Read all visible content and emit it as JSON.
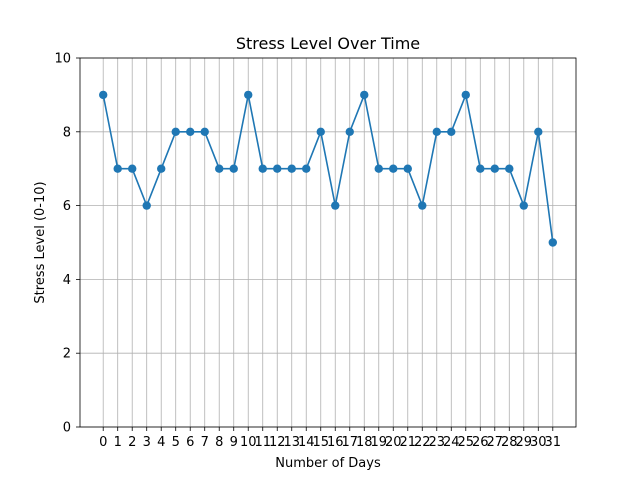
{
  "chart_data": {
    "type": "line",
    "title": "Stress Level Over Time",
    "xlabel": "Number of Days",
    "ylabel": "Stress Level (0-10)",
    "x": [
      0,
      1,
      2,
      3,
      4,
      5,
      6,
      7,
      8,
      9,
      10,
      11,
      12,
      13,
      14,
      15,
      16,
      17,
      18,
      19,
      20,
      21,
      22,
      23,
      24,
      25,
      26,
      27,
      28,
      29,
      30,
      31
    ],
    "xticks": [
      0,
      1,
      2,
      3,
      4,
      5,
      6,
      7,
      8,
      9,
      10,
      11,
      12,
      13,
      14,
      15,
      16,
      17,
      18,
      19,
      20,
      21,
      22,
      23,
      24,
      25,
      26,
      27,
      28,
      29,
      30,
      31
    ],
    "yticks": [
      0,
      2,
      4,
      6,
      8,
      10
    ],
    "xlim": [
      -1.6,
      32.6
    ],
    "ylim": [
      0,
      10
    ],
    "grid": true,
    "series": [
      {
        "values": [
          9,
          7,
          7,
          6,
          7,
          8,
          8,
          8,
          7,
          7,
          9,
          7,
          7,
          7,
          7,
          8,
          6,
          8,
          9,
          7,
          7,
          7,
          6,
          8,
          8,
          9,
          7,
          7,
          7,
          6,
          8,
          5
        ],
        "color": "#1f77b4",
        "marker": "circle"
      }
    ]
  }
}
